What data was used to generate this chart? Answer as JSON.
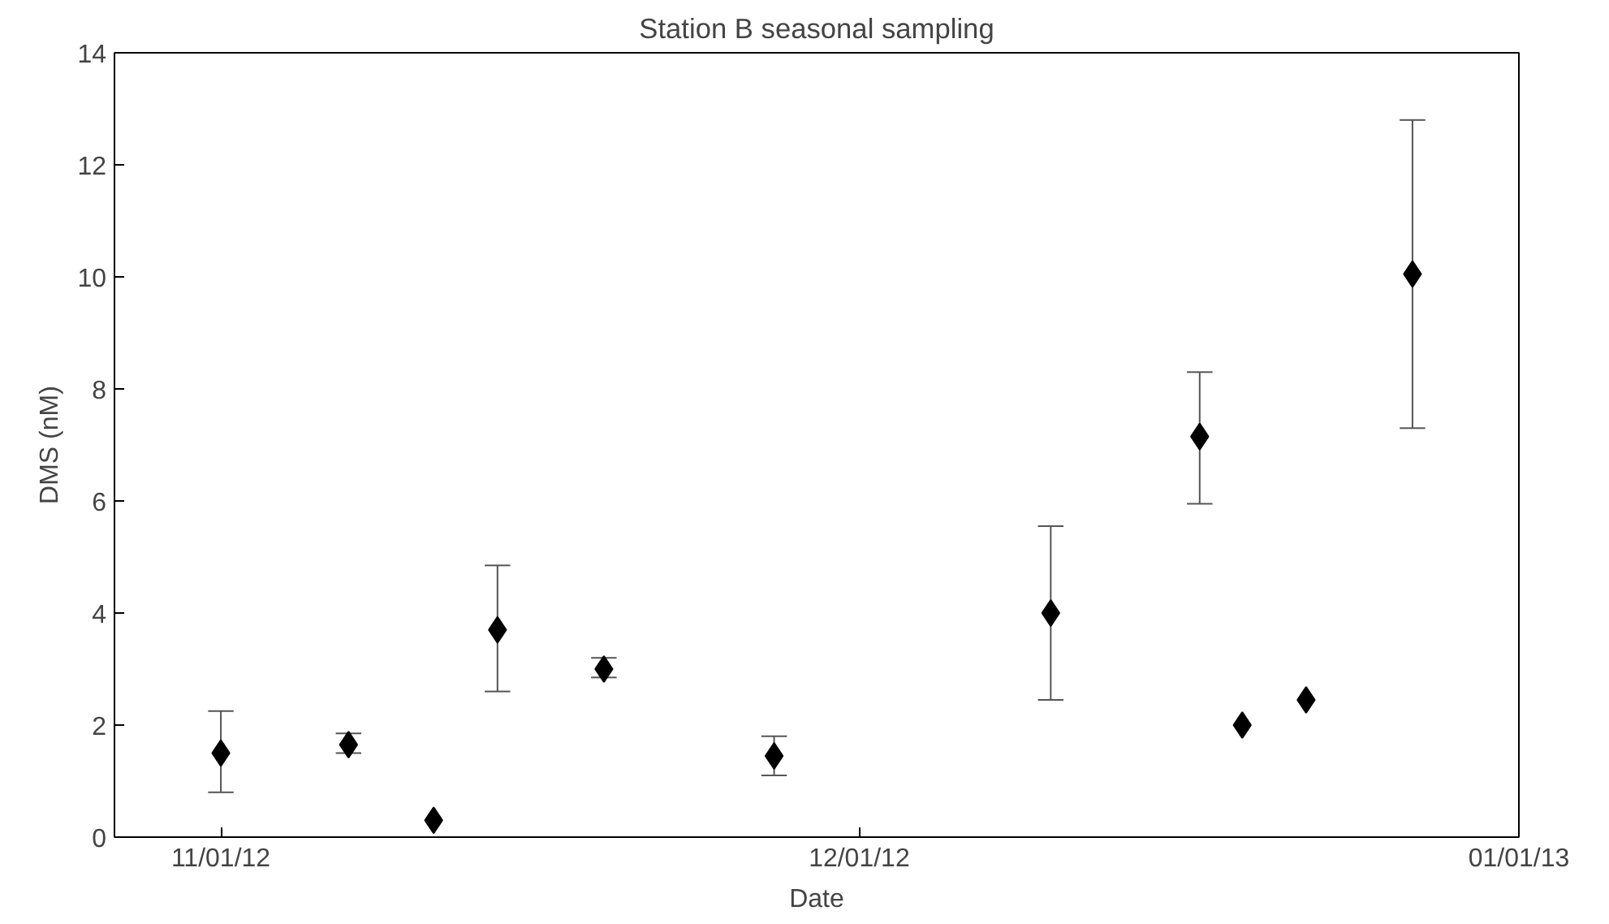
{
  "chart_data": {
    "type": "scatter",
    "title": "Station B seasonal sampling",
    "xlabel": "Date",
    "ylabel": "DMS (nM)",
    "x": [
      "2012-11-01",
      "2012-11-07",
      "2012-11-11",
      "2012-11-14",
      "2012-11-19",
      "2012-11-27",
      "2012-12-10",
      "2012-12-17",
      "2012-12-19",
      "2012-12-22",
      "2012-12-27"
    ],
    "values": [
      1.5,
      1.65,
      0.3,
      3.7,
      3.0,
      1.45,
      4.0,
      7.15,
      2.0,
      2.45,
      10.05
    ],
    "errors": [
      [
        0.8,
        2.25
      ],
      [
        1.5,
        1.85
      ],
      null,
      [
        2.6,
        4.85
      ],
      [
        2.85,
        3.2
      ],
      [
        1.1,
        1.8
      ],
      [
        2.45,
        5.55
      ],
      [
        5.95,
        8.3
      ],
      null,
      null,
      [
        7.3,
        12.8
      ]
    ],
    "color": "#000000",
    "marker": "diamond",
    "grid": false,
    "xlim": [
      "2012-10-27",
      "2013-01-01"
    ],
    "xticks": [
      {
        "value": "2012-11-01",
        "label": "11/01/12"
      },
      {
        "value": "2012-12-01",
        "label": "12/01/12"
      },
      {
        "value": "2013-01-01",
        "label": "01/01/13"
      }
    ],
    "ylim": [
      0,
      14
    ],
    "yticks": [
      0,
      2,
      4,
      6,
      8,
      10,
      12,
      14
    ]
  }
}
